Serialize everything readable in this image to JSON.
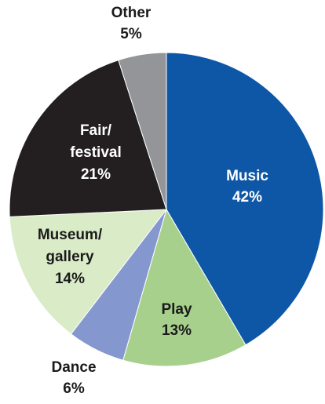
{
  "chart_data": {
    "type": "pie",
    "slices": [
      {
        "label_lines": [
          "Music"
        ],
        "pct_label": "42%",
        "value": 42,
        "color": "#0e57a6",
        "text_color": "#ffffff"
      },
      {
        "label_lines": [
          "Play"
        ],
        "pct_label": "13%",
        "value": 13,
        "color": "#a8d08d",
        "text_color": "#1a1a1a"
      },
      {
        "label_lines": [
          "Dance"
        ],
        "pct_label": "6%",
        "value": 6,
        "color": "#8497cf",
        "text_color": "#1a1a1a"
      },
      {
        "label_lines": [
          "Museum/",
          "gallery"
        ],
        "pct_label": "14%",
        "value": 14,
        "color": "#d9ebc7",
        "text_color": "#1a1a1a"
      },
      {
        "label_lines": [
          "Fair/",
          "festival"
        ],
        "pct_label": "21%",
        "value": 21,
        "color": "#231f20",
        "text_color": "#ffffff"
      },
      {
        "label_lines": [
          "Other"
        ],
        "pct_label": "5%",
        "value": 5,
        "color": "#939598",
        "text_color": "#1a1a1a"
      }
    ],
    "start": "12 o'clock",
    "direction": "clockwise",
    "legend": "none"
  }
}
